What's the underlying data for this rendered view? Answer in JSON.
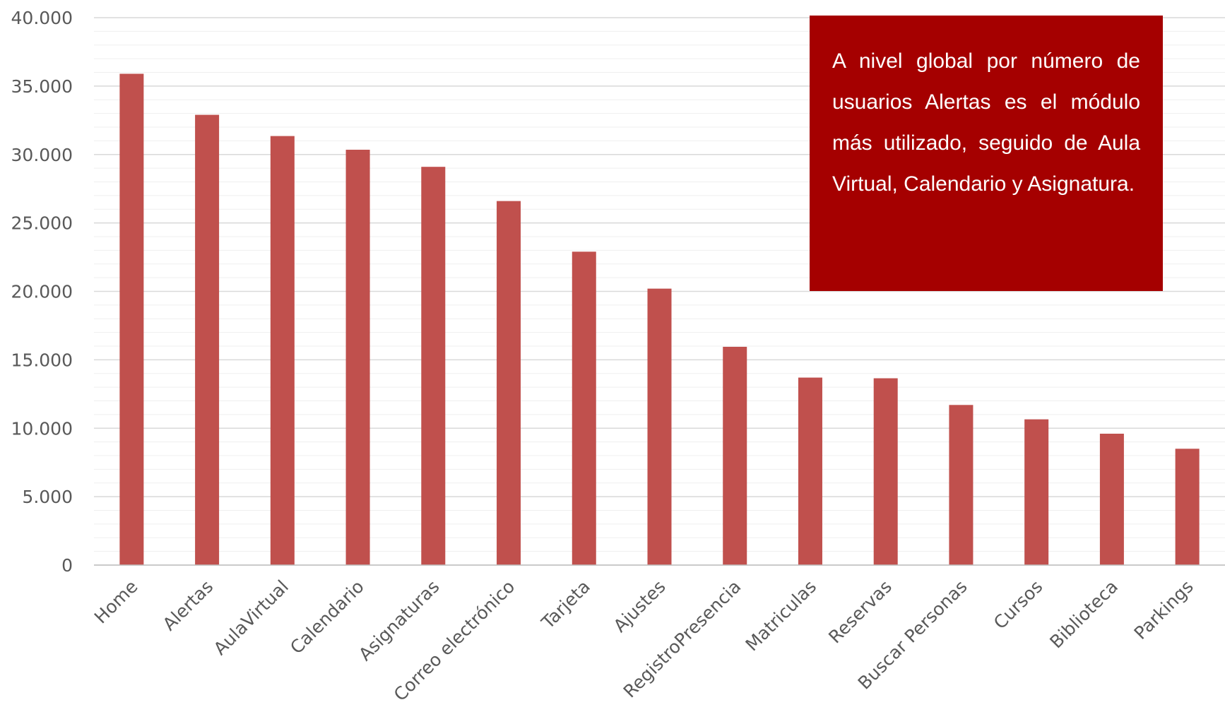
{
  "chart_data": {
    "type": "bar",
    "title": "",
    "xlabel": "",
    "ylabel": "",
    "categories": [
      "Home",
      "Alertas",
      "AulaVirtual",
      "Calendario",
      "Asignaturas",
      "Correo electrónico",
      "Tarjeta",
      "Ajustes",
      "RegistroPresencia",
      "Matriculas",
      "Reservas",
      "Buscar Personas",
      "Cursos",
      "Biblioteca",
      "Parkings"
    ],
    "values": [
      35900,
      32900,
      31350,
      30350,
      29100,
      26600,
      22900,
      20200,
      15950,
      13700,
      13650,
      11700,
      10650,
      9600,
      8500
    ],
    "ylim": [
      0,
      40000
    ],
    "yticks": [
      0,
      5000,
      10000,
      15000,
      20000,
      25000,
      30000,
      35000,
      40000
    ],
    "ytick_labels": [
      "0",
      "5.000",
      "10.000",
      "15.000",
      "20.000",
      "25.000",
      "30.000",
      "35.000",
      "40.000"
    ],
    "bar_color": "#c0504d",
    "grid": true,
    "legend": false
  },
  "callout": {
    "text": "A nivel global por número de usuarios Alertas es el módulo más utilizado, seguido de Aula Virtual, Calendario y Asignatura.",
    "background": "#a50000"
  }
}
